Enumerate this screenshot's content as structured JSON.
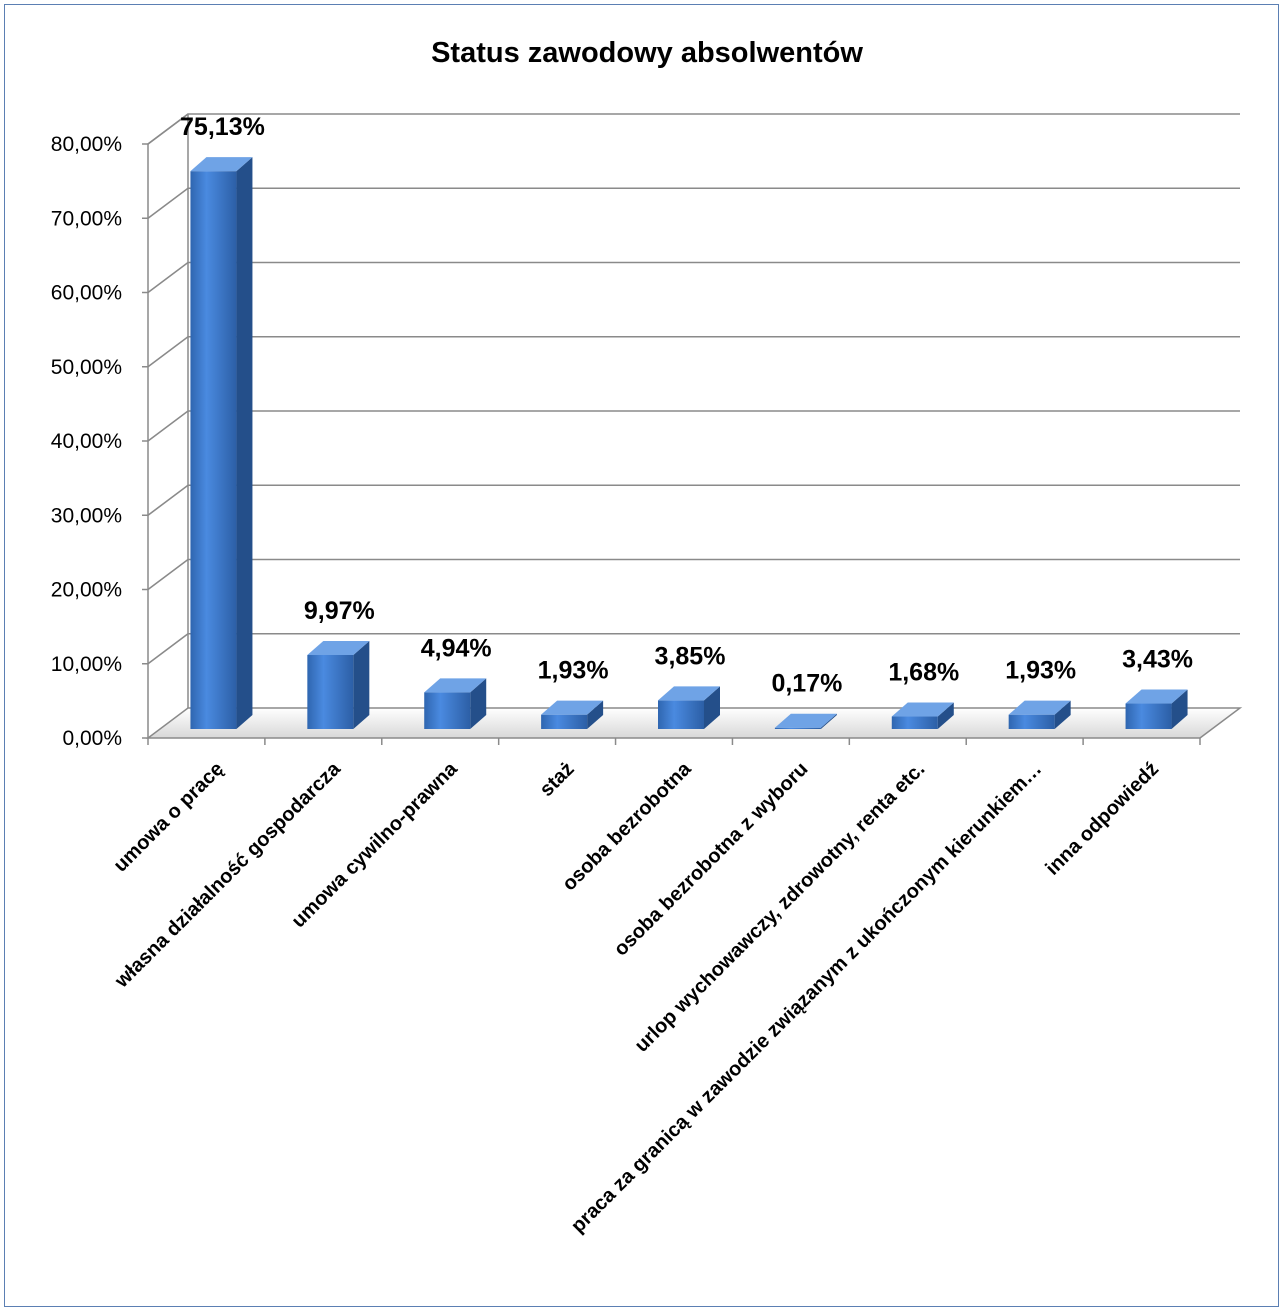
{
  "chart_data": {
    "type": "bar",
    "title": "Status zawodowy absolwentów",
    "xlabel": "",
    "ylabel": "",
    "ylim": [
      0,
      80
    ],
    "yticks": [
      "0,00%",
      "10,00%",
      "20,00%",
      "30,00%",
      "40,00%",
      "50,00%",
      "60,00%",
      "70,00%",
      "80,00%"
    ],
    "grid": true,
    "legend": "none",
    "categories": [
      "umowa o pracę",
      "własna działalność gospodarcza",
      "umowa cywilno-prawna",
      "staż",
      "osoba bezrobotna",
      "osoba bezrobotna z wyboru",
      "urlop wychowawczy, zdrowotny, renta  etc.",
      "praca za granicą w zawodzie związanym z ukończonym kierunkiem…",
      "inna odpowiedź"
    ],
    "values": [
      75.13,
      9.97,
      4.94,
      1.93,
      3.85,
      0.17,
      1.68,
      1.93,
      3.43
    ],
    "data_labels": [
      "75,13%",
      "9,97%",
      "4,94%",
      "1,93%",
      "3,85%",
      "0,17%",
      "1,68%",
      "1,93%",
      "3,43%"
    ],
    "colors": {
      "bar_front": "#3f7fd2",
      "bar_side": "#244f8a",
      "bar_top": "#6fa3e6",
      "grid": "#8a8a8a"
    }
  }
}
